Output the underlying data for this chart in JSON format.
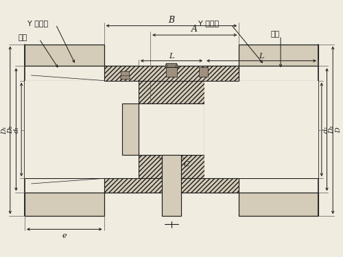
{
  "bg_color": "#f0ece0",
  "line_color": "#1a1a1a",
  "fill_light": "#d4cbb8",
  "fill_hatch": "#b8aa90",
  "figsize": [
    5.0,
    3.75
  ],
  "dpi": 100,
  "labels": {
    "Y_type_left": "Y 型轴孔",
    "Y_type_right": "Y 型轴孔",
    "biaozhi_left": "标志",
    "biaozhi_right": "标志",
    "B": "B",
    "A": "A",
    "L_left": "L",
    "L_right": "L",
    "C": "C",
    "e": "e",
    "D1": "D₁",
    "D2": "D₂",
    "d1": "d₁",
    "d2": "d₂",
    "D3": "D₃",
    "D": "D"
  }
}
